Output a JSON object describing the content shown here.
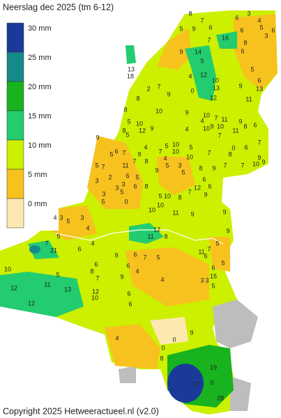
{
  "title": "Neerslag dec 2025 (tm 6-12)",
  "legend": [
    {
      "label": "30 mm",
      "color": "#1a3a9a"
    },
    {
      "label": "25 mm",
      "color": "#168a8a"
    },
    {
      "label": "20 mm",
      "color": "#18b31e"
    },
    {
      "label": "15 mm",
      "color": "#22cc6f"
    },
    {
      "label": "10 mm",
      "color": "#ccf000"
    },
    {
      "label": "5 mm",
      "color": "#f7c21e"
    },
    {
      "label": "0 mm",
      "color": "#fde9b0"
    }
  ],
  "stations": [
    8,
    3,
    7,
    6,
    4,
    5,
    9,
    6,
    5,
    6,
    16,
    6,
    8,
    3,
    7,
    6,
    9,
    14,
    5,
    5,
    13,
    18,
    12,
    4,
    10,
    13,
    9,
    6,
    13,
    2,
    7,
    0,
    9,
    8,
    12,
    11,
    8,
    10,
    10,
    9,
    10,
    7,
    4,
    9,
    5,
    9,
    8,
    12,
    11,
    9,
    10,
    10,
    11,
    6,
    8,
    4,
    7,
    0,
    6,
    7,
    5,
    9,
    10,
    10,
    5,
    4,
    7,
    5,
    8,
    9,
    9,
    10,
    7,
    6,
    7,
    5,
    9,
    7,
    11,
    8,
    10,
    9,
    7,
    8,
    5,
    5,
    4,
    3,
    7,
    7,
    5,
    2,
    6,
    3,
    5,
    9,
    6,
    12,
    3,
    3,
    5,
    6,
    8,
    5,
    7,
    9,
    6,
    5,
    3,
    10,
    8,
    0,
    9,
    4,
    3,
    5,
    3,
    4,
    10,
    11,
    10,
    9,
    12,
    11,
    9,
    5,
    8,
    21,
    7,
    6,
    4,
    5,
    9,
    6,
    7,
    5,
    11,
    6,
    7,
    5,
    6,
    8,
    6,
    9,
    4,
    7,
    3,
    3,
    15,
    6,
    5,
    10,
    12,
    11,
    13,
    5,
    4,
    12,
    10,
    6,
    6,
    12,
    4,
    0,
    9,
    0,
    8,
    19,
    27,
    0,
    28
  ],
  "copyright": "Copyright 2025 Hetweeractueel.nl (v2.0)"
}
